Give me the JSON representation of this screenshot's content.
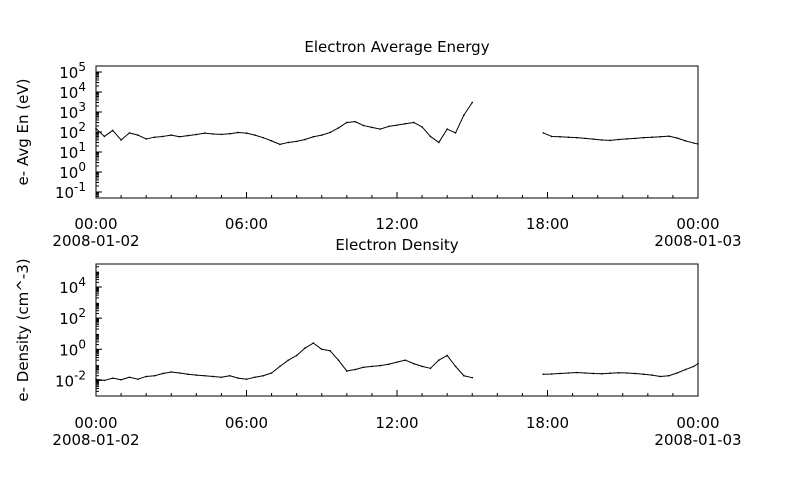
{
  "chart_data": [
    {
      "type": "line",
      "title": "Electron Average Energy",
      "ylabel": "e- Avg En (eV)",
      "scale": "log",
      "x_ticks": [
        {
          "time": "00:00",
          "date": "2008-01-02"
        },
        {
          "time": "06:00",
          "date": ""
        },
        {
          "time": "12:00",
          "date": ""
        },
        {
          "time": "18:00",
          "date": ""
        },
        {
          "time": "00:00",
          "date": "2008-01-03"
        }
      ],
      "xlim": [
        "2008-01-02T00:00",
        "2008-01-03T00:00"
      ],
      "ylim": [
        0.05,
        200000
      ],
      "y_ticks": [
        {
          "base": "10",
          "exp": "5"
        },
        {
          "base": "10",
          "exp": "4"
        },
        {
          "base": "10",
          "exp": "3"
        },
        {
          "base": "10",
          "exp": "2"
        },
        {
          "base": "10",
          "exp": "1"
        },
        {
          "base": "10",
          "exp": "0"
        },
        {
          "base": "10",
          "exp": "-1"
        }
      ],
      "y_tick_values": [
        100000,
        10000,
        1000,
        100,
        10,
        1,
        0.1
      ],
      "series": [
        {
          "x": [
            "00:00",
            "00:20",
            "00:40",
            "01:00",
            "01:20",
            "01:40",
            "02:00",
            "02:20",
            "02:40",
            "03:00",
            "03:20",
            "03:40",
            "04:00",
            "04:20",
            "04:40",
            "05:00",
            "05:20",
            "05:40",
            "06:00",
            "06:20",
            "06:40",
            "07:00",
            "07:20",
            "07:40",
            "08:00",
            "08:20",
            "08:40",
            "09:00",
            "09:20",
            "09:40",
            "10:00",
            "10:20",
            "10:40",
            "11:00",
            "11:20",
            "11:40",
            "12:00",
            "12:20",
            "12:40",
            "13:00",
            "13:20",
            "13:40",
            "14:00",
            "14:20",
            "14:40",
            "15:00"
          ],
          "y": [
            150,
            60,
            120,
            40,
            90,
            70,
            45,
            55,
            60,
            70,
            58,
            66,
            75,
            88,
            80,
            76,
            82,
            95,
            88,
            70,
            52,
            36,
            24,
            30,
            34,
            42,
            58,
            70,
            95,
            160,
            300,
            330,
            210,
            170,
            140,
            190,
            220,
            260,
            300,
            180,
            60,
            30,
            140,
            90,
            700,
            3000
          ]
        },
        {
          "x": [
            "17:50",
            "18:10",
            "18:30",
            "18:50",
            "19:10",
            "19:30",
            "19:50",
            "20:10",
            "20:30",
            "20:50",
            "21:10",
            "21:30",
            "21:50",
            "22:10",
            "22:30",
            "22:50",
            "23:10",
            "23:30",
            "23:50",
            "24:00"
          ],
          "y": [
            90,
            60,
            58,
            55,
            52,
            48,
            44,
            40,
            38,
            42,
            45,
            48,
            52,
            55,
            58,
            62,
            50,
            36,
            28,
            25
          ]
        }
      ]
    },
    {
      "type": "line",
      "title": "Electron Density",
      "ylabel": "e- Density (cm^-3)",
      "scale": "log",
      "x_ticks": [
        {
          "time": "00:00",
          "date": "2008-01-02"
        },
        {
          "time": "06:00",
          "date": ""
        },
        {
          "time": "12:00",
          "date": ""
        },
        {
          "time": "18:00",
          "date": ""
        },
        {
          "time": "00:00",
          "date": "2008-01-03"
        }
      ],
      "xlim": [
        "2008-01-02T00:00",
        "2008-01-03T00:00"
      ],
      "ylim": [
        0.001,
        300000
      ],
      "y_ticks": [
        {
          "base": "10",
          "exp": "4"
        },
        {
          "base": "10",
          "exp": "2"
        },
        {
          "base": "10",
          "exp": "0"
        },
        {
          "base": "10",
          "exp": "-2"
        }
      ],
      "y_tick_values": [
        10000,
        100,
        1,
        0.01
      ],
      "series": [
        {
          "x": [
            "00:00",
            "00:20",
            "00:40",
            "01:00",
            "01:20",
            "01:40",
            "02:00",
            "02:20",
            "02:40",
            "03:00",
            "03:20",
            "03:40",
            "04:00",
            "04:20",
            "04:40",
            "05:00",
            "05:20",
            "05:40",
            "06:00",
            "06:20",
            "06:40",
            "07:00",
            "07:20",
            "07:40",
            "08:00",
            "08:20",
            "08:40",
            "09:00",
            "09:20",
            "09:40",
            "10:00",
            "10:20",
            "10:40",
            "11:00",
            "11:20",
            "11:40",
            "12:00",
            "12:20",
            "12:40",
            "13:00",
            "13:20",
            "13:40",
            "14:00",
            "14:20",
            "14:40",
            "15:00"
          ],
          "y": [
            0.012,
            0.01,
            0.014,
            0.011,
            0.016,
            0.012,
            0.018,
            0.02,
            0.028,
            0.035,
            0.03,
            0.025,
            0.022,
            0.02,
            0.018,
            0.016,
            0.02,
            0.014,
            0.012,
            0.016,
            0.02,
            0.03,
            0.08,
            0.2,
            0.4,
            1.2,
            2.5,
            1.0,
            0.8,
            0.2,
            0.04,
            0.05,
            0.07,
            0.08,
            0.09,
            0.11,
            0.15,
            0.2,
            0.12,
            0.08,
            0.06,
            0.2,
            0.4,
            0.08,
            0.02,
            0.015
          ]
        },
        {
          "x": [
            "17:50",
            "18:10",
            "18:30",
            "18:50",
            "19:10",
            "19:30",
            "19:50",
            "20:10",
            "20:30",
            "20:50",
            "21:10",
            "21:30",
            "21:50",
            "22:10",
            "22:30",
            "22:50",
            "23:10",
            "23:30",
            "23:50",
            "24:00"
          ],
          "y": [
            0.025,
            0.026,
            0.028,
            0.03,
            0.032,
            0.03,
            0.028,
            0.027,
            0.029,
            0.031,
            0.03,
            0.028,
            0.025,
            0.022,
            0.018,
            0.02,
            0.03,
            0.05,
            0.08,
            0.12
          ]
        }
      ]
    }
  ]
}
